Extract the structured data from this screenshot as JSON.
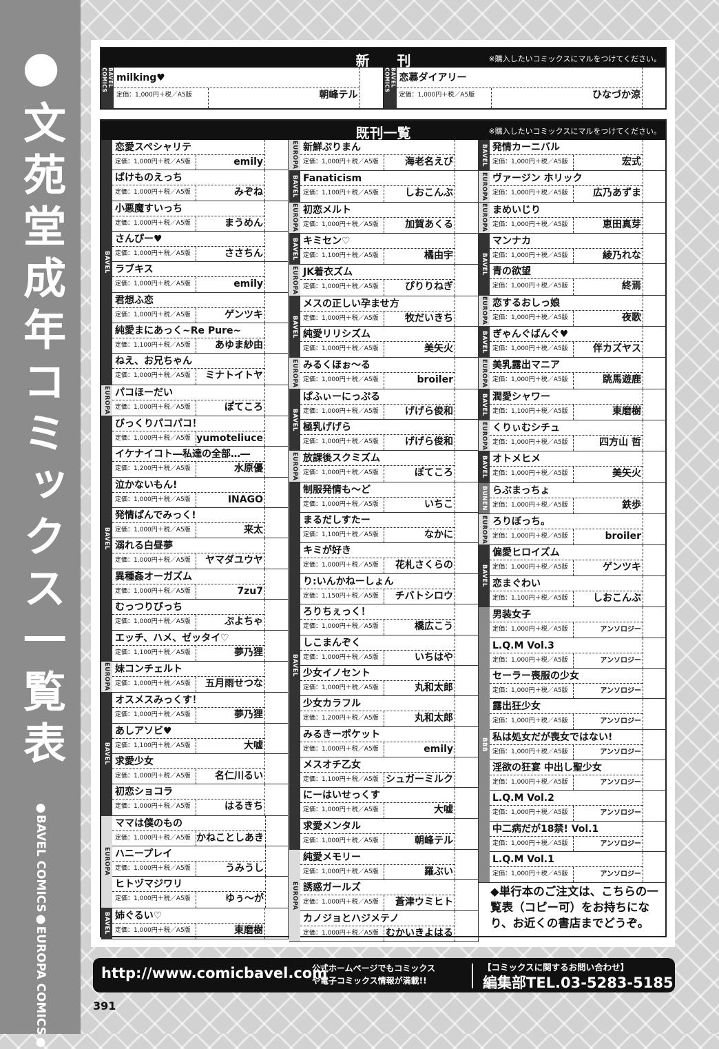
{
  "side": {
    "title": "●文苑堂成年コミックス一覧表",
    "subtitle": "●BAVEL COMICS●EUROPA COMICS●"
  },
  "new": {
    "heading": "新　　刊",
    "note": "※購入したいコミックスにマルをつけてください。",
    "items": [
      {
        "label": "BAVEL COMICS",
        "title": "milking♥",
        "price": "定価：1,000円＋税／A5版",
        "author": "朝峰テル"
      },
      {
        "label": "BAVEL COMICS",
        "title": "恋慕ダイアリー",
        "price": "定価：1,000円＋税／A5版",
        "author": "ひなづか涼"
      }
    ]
  },
  "backlist": {
    "heading": "既刊一覧",
    "note": "※購入したいコミックスにマルをつけてください。"
  },
  "label_colors": {
    "BAVEL": "#333333",
    "EUROPA": "#dcdcdc",
    "BUNEN": "#777777",
    "BBB": "#8a8a8a"
  },
  "columns": [
    [
      {
        "label": "BAVEL",
        "items": [
          [
            "恋愛スペシャリテ",
            "1,000",
            "emily"
          ],
          [
            "ばけものえっち",
            "1,000",
            "みぞね"
          ],
          [
            "小悪魔すいっち",
            "1,000",
            "まうめん"
          ],
          [
            "さんぴー♥",
            "1,000",
            "ささちん"
          ],
          [
            "ラブキス",
            "1,000",
            "emily"
          ],
          [
            "君想ふ恋",
            "1,000",
            "ゲンツキ"
          ],
          [
            "純愛まにあっく~Re Pure~",
            "1,100",
            "あゆま紗由"
          ],
          [
            "ねえ、お兄ちゃん",
            "1,000",
            "ミナトイトヤ"
          ]
        ]
      },
      {
        "label": "EUROPA",
        "items": [
          [
            "パコほーだい",
            "1,000",
            "ぽてころ"
          ]
        ]
      },
      {
        "label": "BAVEL",
        "items": [
          [
            "びっくりパコパコ！",
            "1,000",
            "yumoteliuce"
          ],
          [
            "イケナイコト―私達の全部…―",
            "1,200",
            "水原優"
          ],
          [
            "泣かないもん!",
            "1,000",
            "INAGO"
          ],
          [
            "発情ぱんでみっく!",
            "1,000",
            "来太"
          ],
          [
            "溺れる白昼夢",
            "1,000",
            "ヤマダユウヤ"
          ],
          [
            "異種姦オーガズム",
            "1,000",
            "7zu7"
          ],
          [
            "むっつりびっち",
            "1,000",
            "ぷよちゃ"
          ],
          [
            "エッチ、ハメ、ゼッタイ♡",
            "1,100",
            "夢乃狸"
          ]
        ]
      },
      {
        "label": "EUROPA",
        "items": [
          [
            "妹コンチェルト",
            "1,000",
            "五月雨せつな"
          ]
        ]
      },
      {
        "label": "BAVEL",
        "items": [
          [
            "オスメスみっくす！",
            "1,000",
            "夢乃狸"
          ],
          [
            "あしアソビ♥",
            "1,100",
            "大嘘"
          ],
          [
            "求愛少女",
            "1,000",
            "名仁川るい"
          ],
          [
            "初恋ショコラ",
            "1,000",
            "はるきち"
          ]
        ]
      },
      {
        "label": "EUROPA",
        "items": [
          [
            "ママは僕のもの",
            "1,000",
            "かねことしあき"
          ],
          [
            "ハニープレイ",
            "1,000",
            "うみうし"
          ],
          [
            "ヒトヅマジワリ",
            "1,000",
            "ゆぅ～が"
          ]
        ]
      },
      {
        "label": "BAVEL",
        "items": [
          [
            "姉ぐるい♡",
            "1,000",
            "東磨樹"
          ]
        ]
      }
    ],
    [
      {
        "label": "EUROPA",
        "items": [
          [
            "新鮮ぷりまん",
            "1,000",
            "海老名えび"
          ]
        ]
      },
      {
        "label": "BAVEL",
        "items": [
          [
            "Fanaticism",
            "1,100",
            "しおこんぶ"
          ]
        ]
      },
      {
        "label": "EUROPA",
        "items": [
          [
            "初恋メルト",
            "1,000",
            "加賀あくる"
          ]
        ]
      },
      {
        "label": "BAVEL",
        "items": [
          [
            "キミセン♡",
            "1,100",
            "橘由宇"
          ]
        ]
      },
      {
        "label": "EUROPA",
        "items": [
          [
            "JK着衣ズム",
            "1,000",
            "ぴりりねぎ"
          ]
        ]
      },
      {
        "label": "BAVEL",
        "items": [
          [
            "メスの正しい孕ませ方",
            "1,000",
            "牧だいきち"
          ],
          [
            "純愛リリシズム",
            "1,000",
            "美矢火"
          ]
        ]
      },
      {
        "label": "EUROPA",
        "items": [
          [
            "みるくほぉ～る",
            "1,000",
            "broiler"
          ]
        ]
      },
      {
        "label": "BAVEL",
        "items": [
          [
            "ぱふぃーにっぷる",
            "1,000",
            "げげら俊和"
          ],
          [
            "極乳げげら",
            "1,000",
            "げげら俊和"
          ]
        ]
      },
      {
        "label": "EUROPA",
        "items": [
          [
            "放課後スクミズム",
            "1,000",
            "ぽてころ"
          ]
        ]
      },
      {
        "label": "BAVEL",
        "items": [
          [
            "制服発情も～ど",
            "1,000",
            "いちこ"
          ],
          [
            "まるだしすたー",
            "1,100",
            "なかに"
          ],
          [
            "キミが好き",
            "1,000",
            "花札さくらの"
          ],
          [
            "り:いんかねーしょん",
            "1,150",
            "チバトシロウ"
          ],
          [
            "ろりちぇっく！",
            "1,000",
            "橋広こう"
          ],
          [
            "しこまんぞく",
            "1,000",
            "いちはや"
          ],
          [
            "少女イノセント",
            "1,000",
            "丸和太郎"
          ],
          [
            "少女カラフル",
            "1,200",
            "丸和太郎"
          ],
          [
            "みるきーポケット",
            "1,000",
            "emily"
          ],
          [
            "メスオチ乙女",
            "1,100",
            "シュガーミルク"
          ],
          [
            "にーはいせっくす",
            "1,000",
            "大嘘"
          ],
          [
            "求愛メンタル",
            "1,000",
            "朝峰テル"
          ]
        ]
      },
      {
        "label": "EUROPA",
        "items": [
          [
            "純愛メモリー",
            "1,000",
            "羅ぶい"
          ],
          [
            "誘惑ガールズ",
            "1,000",
            "蒼津ウミヒト"
          ],
          [
            "カノジョとハジメテノ",
            "1,000",
            "むかいきよはる"
          ]
        ]
      }
    ],
    [
      {
        "label": "BAVEL",
        "items": [
          [
            "発情カーニバル",
            "1,000",
            "宏式"
          ]
        ]
      },
      {
        "label": "EUROPA",
        "items": [
          [
            "ヴァージン ホリック",
            "1,000",
            "広乃あずま"
          ]
        ]
      },
      {
        "label": "EUROPA",
        "items": [
          [
            "まめいじり",
            "1,000",
            "恵田真芽"
          ]
        ]
      },
      {
        "label": "BAVEL",
        "items": [
          [
            "マンナカ",
            "1,000",
            "綾乃れな"
          ],
          [
            "青の欲望",
            "1,000",
            "終焉"
          ]
        ]
      },
      {
        "label": "EUROPA",
        "items": [
          [
            "恋するおしっ娘",
            "1,000",
            "夜歌"
          ]
        ]
      },
      {
        "label": "BAVEL",
        "items": [
          [
            "ぎゃんぐばんぐ♥",
            "1,000",
            "伴カズヤス"
          ]
        ]
      },
      {
        "label": "EUROPA",
        "items": [
          [
            "美乳露出マニア",
            "1,000",
            "跳馬遊鹿"
          ]
        ]
      },
      {
        "label": "BAVEL",
        "items": [
          [
            "潤愛シャワー",
            "1,100",
            "東磨樹"
          ]
        ]
      },
      {
        "label": "EUROPA",
        "items": [
          [
            "くりぃむシチュ",
            "1,000",
            "四方山 哲"
          ]
        ]
      },
      {
        "label": "BAVEL",
        "items": [
          [
            "オトメヒメ",
            "1,000",
            "美矢火"
          ]
        ]
      },
      {
        "label": "BUNEN",
        "items": [
          [
            "らぶまっちょ",
            "1,000",
            "鉄歩"
          ]
        ]
      },
      {
        "label": "EUROPA",
        "items": [
          [
            "ろりぼっち。",
            "1,000",
            "broiler"
          ]
        ]
      },
      {
        "label": "BAVEL",
        "items": [
          [
            "偏愛ヒロイズム",
            "1,000",
            "ゲンツキ"
          ],
          [
            "恋まぐわい",
            "1,100",
            "しおこんぶ"
          ]
        ]
      },
      {
        "label": "BBB",
        "items": [
          [
            "男装女子",
            "1,000",
            "アンソロジー"
          ],
          [
            "L.Q.M Vol.3",
            "1,000",
            "アンソロジー"
          ],
          [
            "セーラー喪服の少女",
            "1,000",
            "アンソロジー"
          ],
          [
            "露出狂少女",
            "1,000",
            "アンソロジー"
          ],
          [
            "私は処女だが喪女ではない!",
            "1,000",
            "アンソロジー"
          ],
          [
            "淫欲の狂宴 中出し聖少女",
            "1,000",
            "アンソロジー"
          ],
          [
            "L.Q.M Vol.2",
            "1,000",
            "アンソロジー"
          ],
          [
            "中二病だが18禁! Vol.1",
            "1,000",
            "アンソロジー"
          ],
          [
            "L.Q.M Vol.1",
            "1,000",
            "アンソロジー"
          ]
        ]
      }
    ]
  ],
  "price_format": {
    "prefix": "定価：",
    "suffix": "円＋税／A5版"
  },
  "notice": "◆単行本のご注文は、こちらの一覧表（コピー可）をお持ちになり、お近くの書店までどうぞ。",
  "footer": {
    "url": "http://www.comicbavel.com",
    "message_1": "公式ホームページでもコミックス",
    "message_2": "や電子コミックス情報が満載!!",
    "inquiry": "【コミックスに関するお問い合わせ】",
    "tel": "編集部TEL.03-5283-5185"
  },
  "page_number": "391"
}
